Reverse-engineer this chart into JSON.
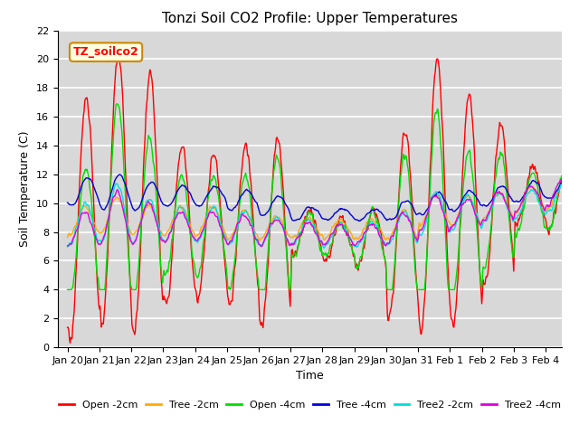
{
  "title": "Tonzi Soil CO2 Profile: Upper Temperatures",
  "xlabel": "Time",
  "ylabel": "Soil Temperature (C)",
  "ylim": [
    0,
    22
  ],
  "background_color": "#d8d8d8",
  "plot_bg_color": "#d8d8d8",
  "grid_color": "white",
  "legend_label": "TZ_soilco2",
  "series_labels": [
    "Open -2cm",
    "Tree -2cm",
    "Open -4cm",
    "Tree -4cm",
    "Tree2 -2cm",
    "Tree2 -4cm"
  ],
  "series_colors": [
    "#ff0000",
    "#ffaa00",
    "#00dd00",
    "#0000dd",
    "#00dddd",
    "#dd00dd"
  ],
  "line_width": 1.0,
  "title_fontsize": 11,
  "label_fontsize": 9,
  "tick_fontsize": 8,
  "legend_fontsize": 9,
  "xtick_labels": [
    "Jan 20",
    "Jan 21",
    "Jan 22",
    "Jan 23",
    "Jan 24",
    "Jan 25",
    "Jan 26",
    "Jan 27",
    "Jan 28",
    "Jan 29",
    "Jan 30",
    "Jan 31",
    "Feb 1",
    "Feb 2",
    "Feb 3",
    "Feb 4"
  ],
  "yticks": [
    0,
    2,
    4,
    6,
    8,
    10,
    12,
    14,
    16,
    18,
    20,
    22
  ]
}
